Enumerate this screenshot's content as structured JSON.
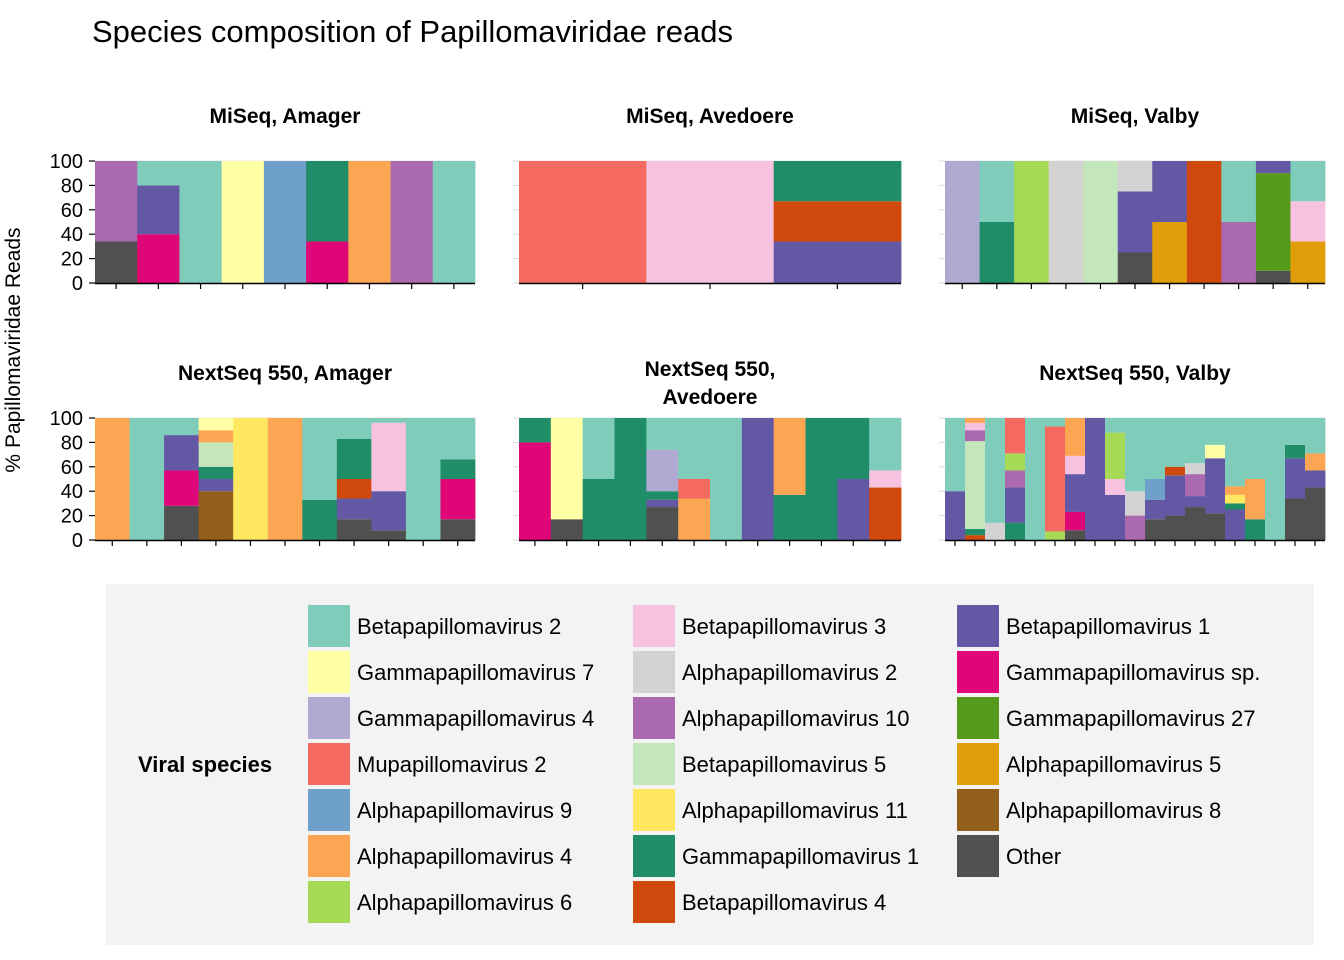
{
  "title": "Species composition of Papillomaviridae reads",
  "ylabel": "% Papillomaviridae Reads",
  "chart_data": {
    "type": "bar",
    "stacked": true,
    "y_ticks": [
      0,
      20,
      40,
      60,
      80,
      100
    ],
    "ylim": [
      0,
      100
    ],
    "grid": true,
    "legend_title": "Viral species",
    "legend_position": "bottom",
    "species": [
      {
        "name": "Betapapillomavirus 2",
        "color": "#7fccba"
      },
      {
        "name": "Gammapapillomavirus 7",
        "color": "#ffffa6"
      },
      {
        "name": "Gammapapillomavirus 4",
        "color": "#b0aad3"
      },
      {
        "name": "Mupapillomavirus 2",
        "color": "#f56a60"
      },
      {
        "name": "Alphapapillomavirus 9",
        "color": "#6fa0c9"
      },
      {
        "name": "Alphapapillomavirus 4",
        "color": "#fca553"
      },
      {
        "name": "Alphapapillomavirus 6",
        "color": "#a6d956"
      },
      {
        "name": "Betapapillomavirus 3",
        "color": "#f7c1e0"
      },
      {
        "name": "Alphapapillomavirus 2",
        "color": "#d2d2d2"
      },
      {
        "name": "Alphapapillomavirus 10",
        "color": "#ab69b0"
      },
      {
        "name": "Betapapillomavirus 5",
        "color": "#c4e6bb"
      },
      {
        "name": "Alphapapillomavirus 11",
        "color": "#ffe85f"
      },
      {
        "name": "Gammapapillomavirus 1",
        "color": "#1f8e68"
      },
      {
        "name": "Betapapillomavirus 4",
        "color": "#d0490c"
      },
      {
        "name": "Betapapillomavirus 1",
        "color": "#6258a4"
      },
      {
        "name": "Gammapapillomavirus sp.",
        "color": "#df0677"
      },
      {
        "name": "Gammapapillomavirus 27",
        "color": "#569a1c"
      },
      {
        "name": "Alphapapillomavirus 5",
        "color": "#e09e0b"
      },
      {
        "name": "Alphapapillomavirus 8",
        "color": "#93601b"
      },
      {
        "name": "Other",
        "color": "#505050"
      }
    ],
    "panels": [
      {
        "title": "MiSeq, Amager",
        "bars": [
          [
            [
              "Other",
              34
            ],
            [
              "Alphapapillomavirus 10",
              66
            ]
          ],
          [
            [
              "Gammapapillomavirus sp.",
              40
            ],
            [
              "Betapapillomavirus 1",
              40
            ],
            [
              "Betapapillomavirus 2",
              20
            ]
          ],
          [
            [
              "Betapapillomavirus 2",
              100
            ]
          ],
          [
            [
              "Gammapapillomavirus 7",
              100
            ]
          ],
          [
            [
              "Alphapapillomavirus 9",
              100
            ]
          ],
          [
            [
              "Gammapapillomavirus sp.",
              34
            ],
            [
              "Gammapapillomavirus 1",
              66
            ]
          ],
          [
            [
              "Alphapapillomavirus 4",
              100
            ]
          ],
          [
            [
              "Alphapapillomavirus 10",
              100
            ]
          ],
          [
            [
              "Betapapillomavirus 2",
              100
            ]
          ]
        ]
      },
      {
        "title": "MiSeq, Avedoere",
        "bars": [
          [
            [
              "Mupapillomavirus 2",
              100
            ]
          ],
          [
            [
              "Betapapillomavirus 3",
              100
            ]
          ],
          [
            [
              "Betapapillomavirus 1",
              34
            ],
            [
              "Betapapillomavirus 4",
              33
            ],
            [
              "Gammapapillomavirus 1",
              33
            ]
          ]
        ]
      },
      {
        "title": "MiSeq, Valby",
        "bars": [
          [
            [
              "Gammapapillomavirus 4",
              100
            ]
          ],
          [
            [
              "Gammapapillomavirus 1",
              50
            ],
            [
              "Betapapillomavirus 2",
              50
            ]
          ],
          [
            [
              "Alphapapillomavirus 6",
              100
            ]
          ],
          [
            [
              "Alphapapillomavirus 2",
              100
            ]
          ],
          [
            [
              "Betapapillomavirus 5",
              100
            ]
          ],
          [
            [
              "Other",
              25
            ],
            [
              "Betapapillomavirus 1",
              50
            ],
            [
              "Alphapapillomavirus 2",
              25
            ]
          ],
          [
            [
              "Alphapapillomavirus 5",
              50
            ],
            [
              "Betapapillomavirus 1",
              50
            ]
          ],
          [
            [
              "Betapapillomavirus 4",
              100
            ]
          ],
          [
            [
              "Alphapapillomavirus 10",
              50
            ],
            [
              "Betapapillomavirus 2",
              50
            ]
          ],
          [
            [
              "Other",
              10
            ],
            [
              "Gammapapillomavirus 27",
              80
            ],
            [
              "Betapapillomavirus 1",
              10
            ]
          ],
          [
            [
              "Alphapapillomavirus 5",
              34
            ],
            [
              "Betapapillomavirus 3",
              33
            ],
            [
              "Betapapillomavirus 2",
              33
            ]
          ]
        ]
      },
      {
        "title": "NextSeq 550,\nAvedoere",
        "bars": []
      }
    ]
  },
  "panels_full": [
    {
      "title": "MiSeq, Amager"
    },
    {
      "title": "MiSeq, Avedoere"
    },
    {
      "title": "MiSeq, Valby"
    },
    {
      "title": "NextSeq 550, Amager",
      "bars": [
        [
          [
            "Alphapapillomavirus 4",
            100
          ]
        ],
        [
          [
            "Betapapillomavirus 2",
            100
          ]
        ],
        [
          [
            "Other",
            28
          ],
          [
            "Gammapapillomavirus sp.",
            29
          ],
          [
            "Betapapillomavirus 1",
            29
          ],
          [
            "Betapapillomavirus 2",
            14
          ]
        ],
        [
          [
            "Alphapapillomavirus 8",
            40
          ],
          [
            "Betapapillomavirus 1",
            10
          ],
          [
            "Gammapapillomavirus 1",
            10
          ],
          [
            "Betapapillomavirus 5",
            20
          ],
          [
            "Alphapapillomavirus 4",
            10
          ],
          [
            "Gammapapillomavirus 7",
            10
          ]
        ],
        [
          [
            "Alphapapillomavirus 11",
            100
          ]
        ],
        [
          [
            "Alphapapillomavirus 4",
            100
          ]
        ],
        [
          [
            "Gammapapillomavirus 1",
            33
          ],
          [
            "Betapapillomavirus 2",
            67
          ]
        ],
        [
          [
            "Other",
            17
          ],
          [
            "Betapapillomavirus 1",
            17
          ],
          [
            "Betapapillomavirus 4",
            16
          ],
          [
            "Gammapapillomavirus 1",
            33
          ],
          [
            "Betapapillomavirus 2",
            17
          ]
        ],
        [
          [
            "Other",
            8
          ],
          [
            "Betapapillomavirus 1",
            32
          ],
          [
            "Betapapillomavirus 3",
            56
          ],
          [
            "Betapapillomavirus 2",
            4
          ]
        ],
        [
          [
            "Betapapillomavirus 2",
            100
          ]
        ],
        [
          [
            "Other",
            17
          ],
          [
            "Gammapapillomavirus sp.",
            33
          ],
          [
            "Gammapapillomavirus 1",
            16
          ],
          [
            "Betapapillomavirus 2",
            34
          ]
        ]
      ]
    },
    {
      "title": "NextSeq 550, Avedoere",
      "bars": [
        [
          [
            "Gammapapillomavirus sp.",
            80
          ],
          [
            "Gammapapillomavirus 1",
            20
          ]
        ],
        [
          [
            "Other",
            17
          ],
          [
            "Gammapapillomavirus 7",
            83
          ]
        ],
        [
          [
            "Gammapapillomavirus 1",
            50
          ],
          [
            "Betapapillomavirus 2",
            50
          ]
        ],
        [
          [
            "Gammapapillomavirus 1",
            100
          ]
        ],
        [
          [
            "Other",
            27
          ],
          [
            "Betapapillomavirus 1",
            6
          ],
          [
            "Gammapapillomavirus 1",
            7
          ],
          [
            "Gammapapillomavirus 4",
            34
          ],
          [
            "Betapapillomavirus 2",
            26
          ]
        ],
        [
          [
            "Alphapapillomavirus 4",
            34
          ],
          [
            "Mupapillomavirus 2",
            16
          ],
          [
            "Betapapillomavirus 2",
            50
          ]
        ],
        [
          [
            "Betapapillomavirus 2",
            100
          ]
        ],
        [
          [
            "Betapapillomavirus 1",
            100
          ]
        ],
        [
          [
            "Gammapapillomavirus 1",
            37
          ],
          [
            "Alphapapillomavirus 4",
            63
          ]
        ],
        [
          [
            "Gammapapillomavirus 1",
            100
          ]
        ],
        [
          [
            "Betapapillomavirus 1",
            50
          ],
          [
            "Gammapapillomavirus 1",
            50
          ]
        ],
        [
          [
            "Betapapillomavirus 4",
            43
          ],
          [
            "Betapapillomavirus 3",
            14
          ],
          [
            "Betapapillomavirus 2",
            43
          ]
        ]
      ]
    },
    {
      "title": "NextSeq 550, Valby",
      "bars": [
        [
          [
            "Betapapillomavirus 1",
            40
          ],
          [
            "Betapapillomavirus 2",
            60
          ]
        ],
        [
          [
            "Betapapillomavirus 4",
            4
          ],
          [
            "Gammapapillomavirus 1",
            5
          ],
          [
            "Betapapillomavirus 5",
            72
          ],
          [
            "Alphapapillomavirus 10",
            9
          ],
          [
            "Betapapillomavirus 3",
            6
          ],
          [
            "Alphapapillomavirus 4",
            4
          ]
        ],
        [
          [
            "Alphapapillomavirus 2",
            14
          ],
          [
            "Betapapillomavirus 2",
            86
          ]
        ],
        [
          [
            "Gammapapillomavirus 1",
            14
          ],
          [
            "Betapapillomavirus 1",
            29
          ],
          [
            "Alphapapillomavirus 10",
            14
          ],
          [
            "Alphapapillomavirus 6",
            14
          ],
          [
            "Mupapillomavirus 2",
            29
          ]
        ],
        [
          [
            "Betapapillomavirus 2",
            100
          ]
        ],
        [
          [
            "Alphapapillomavirus 6",
            7
          ],
          [
            "Mupapillomavirus 2",
            86
          ],
          [
            "Betapapillomavirus 2",
            7
          ]
        ],
        [
          [
            "Other",
            8
          ],
          [
            "Gammapapillomavirus sp.",
            15
          ],
          [
            "Betapapillomavirus 1",
            31
          ],
          [
            "Betapapillomavirus 3",
            15
          ],
          [
            "Alphapapillomavirus 4",
            31
          ]
        ],
        [
          [
            "Betapapillomavirus 1",
            100
          ]
        ],
        [
          [
            "Betapapillomavirus 1",
            37
          ],
          [
            "Betapapillomavirus 3",
            13
          ],
          [
            "Alphapapillomavirus 6",
            38
          ],
          [
            "Betapapillomavirus 2",
            12
          ]
        ],
        [
          [
            "Alphapapillomavirus 10",
            20
          ],
          [
            "Alphapapillomavirus 2",
            20
          ],
          [
            "Betapapillomavirus 2",
            60
          ]
        ],
        [
          [
            "Other",
            17
          ],
          [
            "Betapapillomavirus 1",
            16
          ],
          [
            "Alphapapillomavirus 9",
            17
          ],
          [
            "Betapapillomavirus 2",
            50
          ]
        ],
        [
          [
            "Other",
            20
          ],
          [
            "Betapapillomavirus 1",
            33
          ],
          [
            "Betapapillomavirus 4",
            7
          ],
          [
            "Betapapillomavirus 2",
            40
          ]
        ],
        [
          [
            "Other",
            27
          ],
          [
            "Betapapillomavirus 1",
            9
          ],
          [
            "Alphapapillomavirus 10",
            18
          ],
          [
            "Alphapapillomavirus 2",
            9
          ],
          [
            "Betapapillomavirus 2",
            37
          ]
        ],
        [
          [
            "Other",
            22
          ],
          [
            "Betapapillomavirus 1",
            45
          ],
          [
            "Gammapapillomavirus 7",
            11
          ],
          [
            "Betapapillomavirus 2",
            22
          ]
        ],
        [
          [
            "Betapapillomavirus 1",
            25
          ],
          [
            "Gammapapillomavirus 1",
            5
          ],
          [
            "Alphapapillomavirus 11",
            7
          ],
          [
            "Alphapapillomavirus 4",
            7
          ],
          [
            "Betapapillomavirus 2",
            56
          ]
        ],
        [
          [
            "Gammapapillomavirus 1",
            17
          ],
          [
            "Alphapapillomavirus 4",
            33
          ],
          [
            "Betapapillomavirus 2",
            50
          ]
        ],
        [
          [
            "Betapapillomavirus 2",
            100
          ]
        ],
        [
          [
            "Other",
            34
          ],
          [
            "Betapapillomavirus 1",
            33
          ],
          [
            "Gammapapillomavirus 1",
            11
          ],
          [
            "Betapapillomavirus 2",
            22
          ]
        ],
        [
          [
            "Other",
            43
          ],
          [
            "Betapapillomavirus 1",
            14
          ],
          [
            "Alphapapillomavirus 4",
            14
          ],
          [
            "Betapapillomavirus 2",
            29
          ]
        ]
      ]
    }
  ]
}
